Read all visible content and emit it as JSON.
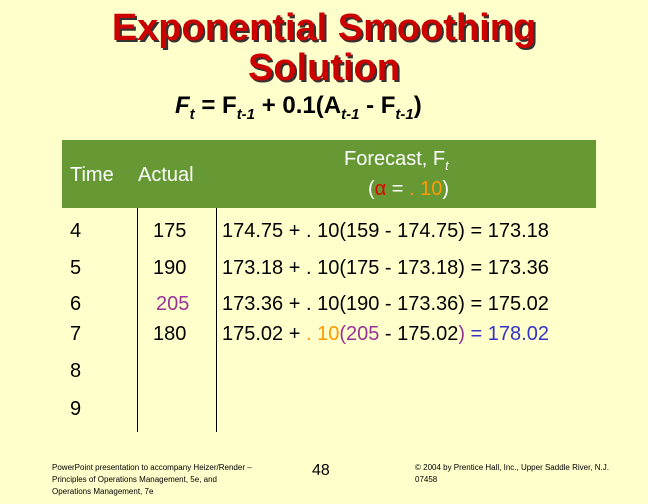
{
  "title": [
    "Exponential Smoothing",
    "Solution"
  ],
  "formula": [
    "F",
    "t",
    " = F",
    "t-1",
    " + 0.1(A",
    "t-1",
    " - F",
    "t-1",
    ")"
  ],
  "table": {
    "header": {
      "time": "Time",
      "actual": "Actual",
      "forecast": [
        "Forecast, F",
        "t",
        "(",
        "α",
        " = ",
        ". 10",
        ")"
      ]
    },
    "rows": [
      {
        "time": "4",
        "actual": "175",
        "forecast": "174.75 + . 10(159 - 174.75) = 173.18"
      },
      {
        "time": "5",
        "actual": "190",
        "forecast": "173.18 + . 10(175 - 173.18) = 173.36"
      },
      {
        "time": "6",
        "actual": "205",
        "forecast": "173.36 + . 10(190 - 173.36) = 175.02"
      },
      {
        "time": "7",
        "actual": "180",
        "forecast": [
          "175.02 + ",
          ". 10",
          "(",
          "205",
          " - 175.02",
          ")",
          " = 178.02"
        ]
      },
      {
        "time": "8"
      },
      {
        "time": "9"
      }
    ]
  },
  "footer": {
    "left": "PowerPoint presentation to accompany Heizer/Render – Principles of Operations Management, 5e, and Operations Management, 7e",
    "page": "48",
    "right": "© 2004 by Prentice Hall, Inc., Upper Saddle River, N.J. 07458"
  }
}
